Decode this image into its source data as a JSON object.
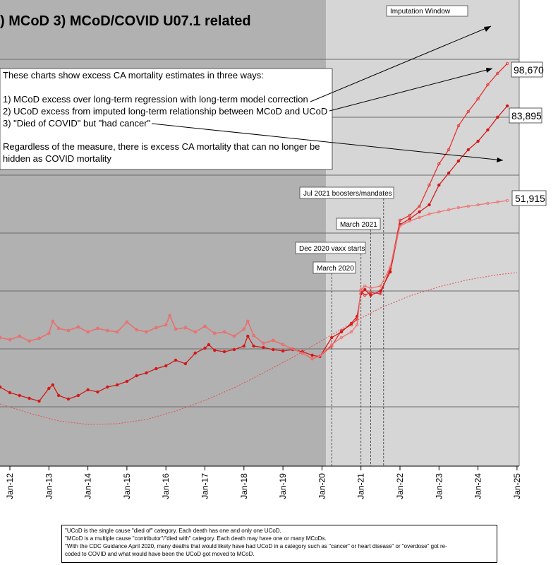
{
  "chart_data": {
    "type": "line",
    "title": ") MCoD 3) MCoD/COVID U07.1 related",
    "x_tick_labels": [
      "Jan-12",
      "Jan-13",
      "Jan-14",
      "Jan-15",
      "Jan-16",
      "Jan-17",
      "Jan-18",
      "Jan-19",
      "Jan-20",
      "Jan-21",
      "Jan-22",
      "Jan-23",
      "Jan-24",
      "Jan-25"
    ],
    "x_range": [
      2011.75,
      2025.0
    ],
    "imputation_window_start": 2020.1,
    "end_labels": [
      "98,670",
      "83,895",
      "51,915"
    ],
    "notes": {
      "intro": "These charts show excess CA mortality estimates in three ways:",
      "item1": "1) MCoD excess over long-term regression with long-term model correction",
      "item2": "2) UCoD excess from imputed long-term relationship between MCoD and UCoD",
      "item3": "3) \"Died of COVID\" but \"had cancer\"",
      "closing1": "Regardless of the measure, there is excess CA mortality that can no longer be",
      "closing2": "hidden as COVID mortality"
    },
    "annotations": {
      "imputation": "Imputation Window",
      "boosters": "Jul 2021 boosters/mandates",
      "march2021": "March 2021",
      "vaxx": "Dec 2020 vaxx starts",
      "march2020": "March 2020"
    },
    "event_lines_x": [
      2020.25,
      2021.0,
      2021.25,
      2021.58
    ],
    "series": [
      {
        "color": "#e83030",
        "values": [
          [
            2011.75,
            478
          ],
          [
            2012.0,
            481
          ],
          [
            2012.25,
            476
          ],
          [
            2012.5,
            483
          ],
          [
            2012.75,
            479
          ],
          [
            2013.0,
            472
          ],
          [
            2013.1,
            455
          ],
          [
            2013.25,
            465
          ],
          [
            2013.5,
            468
          ],
          [
            2013.75,
            463
          ],
          [
            2014.0,
            470
          ],
          [
            2014.25,
            465
          ],
          [
            2014.5,
            468
          ],
          [
            2014.75,
            470
          ],
          [
            2015.0,
            456
          ],
          [
            2015.25,
            467
          ],
          [
            2015.5,
            470
          ],
          [
            2015.75,
            464
          ],
          [
            2016.0,
            460
          ],
          [
            2016.1,
            447
          ],
          [
            2016.25,
            466
          ],
          [
            2016.5,
            464
          ],
          [
            2016.75,
            470
          ],
          [
            2017.0,
            462
          ],
          [
            2017.25,
            472
          ],
          [
            2017.5,
            470
          ],
          [
            2017.75,
            476
          ],
          [
            2018.0,
            466
          ],
          [
            2018.1,
            455
          ],
          [
            2018.25,
            475
          ],
          [
            2018.5,
            486
          ],
          [
            2018.75,
            482
          ],
          [
            2019.0,
            488
          ],
          [
            2019.25,
            494
          ],
          [
            2019.5,
            500
          ],
          [
            2019.75,
            508
          ],
          [
            2019.95,
            504
          ],
          [
            2020.25,
            490
          ],
          [
            2020.5,
            468
          ],
          [
            2020.75,
            460
          ],
          [
            2020.9,
            452
          ],
          [
            2021.0,
            412
          ],
          [
            2021.1,
            418
          ],
          [
            2021.25,
            414
          ],
          [
            2021.5,
            416
          ],
          [
            2021.75,
            380
          ],
          [
            2022.0,
            312
          ],
          [
            2022.25,
            305
          ],
          [
            2022.5,
            292
          ],
          [
            2022.75,
            262
          ],
          [
            2023.0,
            232
          ],
          [
            2023.25,
            212
          ],
          [
            2023.5,
            178
          ],
          [
            2023.75,
            158
          ],
          [
            2024.0,
            140
          ],
          [
            2024.25,
            120
          ],
          [
            2024.5,
            104
          ],
          [
            2024.75,
            90
          ]
        ]
      },
      {
        "color": "#d41818",
        "values": [
          [
            2011.75,
            548
          ],
          [
            2012.0,
            556
          ],
          [
            2012.25,
            560
          ],
          [
            2012.5,
            564
          ],
          [
            2012.75,
            568
          ],
          [
            2013.0,
            550
          ],
          [
            2013.1,
            545
          ],
          [
            2013.25,
            560
          ],
          [
            2013.5,
            565
          ],
          [
            2013.75,
            560
          ],
          [
            2014.0,
            552
          ],
          [
            2014.25,
            555
          ],
          [
            2014.5,
            548
          ],
          [
            2014.75,
            545
          ],
          [
            2015.0,
            540
          ],
          [
            2015.25,
            532
          ],
          [
            2015.5,
            528
          ],
          [
            2015.75,
            522
          ],
          [
            2016.0,
            518
          ],
          [
            2016.25,
            510
          ],
          [
            2016.5,
            515
          ],
          [
            2016.75,
            500
          ],
          [
            2017.0,
            493
          ],
          [
            2017.1,
            488
          ],
          [
            2017.25,
            496
          ],
          [
            2017.5,
            498
          ],
          [
            2017.75,
            495
          ],
          [
            2018.0,
            490
          ],
          [
            2018.1,
            476
          ],
          [
            2018.25,
            490
          ],
          [
            2018.5,
            492
          ],
          [
            2018.75,
            495
          ],
          [
            2019.0,
            497
          ],
          [
            2019.25,
            495
          ],
          [
            2019.5,
            498
          ],
          [
            2019.75,
            503
          ],
          [
            2019.95,
            505
          ],
          [
            2020.25,
            478
          ],
          [
            2020.5,
            470
          ],
          [
            2020.75,
            458
          ],
          [
            2020.9,
            448
          ],
          [
            2021.0,
            416
          ],
          [
            2021.1,
            410
          ],
          [
            2021.25,
            418
          ],
          [
            2021.5,
            412
          ],
          [
            2021.75,
            385
          ],
          [
            2022.0,
            318
          ],
          [
            2022.25,
            310
          ],
          [
            2022.5,
            300
          ],
          [
            2022.75,
            290
          ],
          [
            2023.0,
            262
          ],
          [
            2023.25,
            245
          ],
          [
            2023.5,
            228
          ],
          [
            2023.75,
            212
          ],
          [
            2024.0,
            200
          ],
          [
            2024.25,
            184
          ],
          [
            2024.5,
            166
          ],
          [
            2024.75,
            150
          ]
        ]
      },
      {
        "color": "#f07070",
        "values": [
          [
            2011.75,
            478
          ],
          [
            2012.0,
            481
          ],
          [
            2012.25,
            476
          ],
          [
            2012.5,
            483
          ],
          [
            2012.75,
            479
          ],
          [
            2013.0,
            472
          ],
          [
            2013.1,
            455
          ],
          [
            2013.25,
            465
          ],
          [
            2013.5,
            468
          ],
          [
            2013.75,
            463
          ],
          [
            2014.0,
            470
          ],
          [
            2014.25,
            465
          ],
          [
            2014.5,
            468
          ],
          [
            2014.75,
            470
          ],
          [
            2015.0,
            456
          ],
          [
            2015.25,
            467
          ],
          [
            2015.5,
            470
          ],
          [
            2015.75,
            464
          ],
          [
            2016.0,
            460
          ],
          [
            2016.1,
            447
          ],
          [
            2016.25,
            466
          ],
          [
            2016.5,
            464
          ],
          [
            2016.75,
            470
          ],
          [
            2017.0,
            462
          ],
          [
            2017.25,
            472
          ],
          [
            2017.5,
            470
          ],
          [
            2017.75,
            476
          ],
          [
            2018.0,
            466
          ],
          [
            2018.1,
            455
          ],
          [
            2018.25,
            475
          ],
          [
            2018.5,
            486
          ],
          [
            2018.75,
            482
          ],
          [
            2019.0,
            488
          ],
          [
            2019.25,
            494
          ],
          [
            2019.5,
            500
          ],
          [
            2019.75,
            508
          ],
          [
            2019.95,
            504
          ],
          [
            2020.25,
            488
          ],
          [
            2020.5,
            478
          ],
          [
            2020.75,
            470
          ],
          [
            2020.9,
            460
          ],
          [
            2021.0,
            410
          ],
          [
            2021.1,
            405
          ],
          [
            2021.25,
            408
          ],
          [
            2021.5,
            405
          ],
          [
            2021.75,
            378
          ],
          [
            2022.0,
            320
          ],
          [
            2022.25,
            313
          ],
          [
            2022.5,
            308
          ],
          [
            2022.75,
            303
          ],
          [
            2023.0,
            300
          ],
          [
            2023.25,
            297
          ],
          [
            2023.5,
            294
          ],
          [
            2023.75,
            292
          ],
          [
            2024.0,
            290
          ],
          [
            2024.25,
            288
          ],
          [
            2024.5,
            286
          ],
          [
            2024.75,
            284
          ]
        ]
      },
      {
        "color": "#e85050",
        "dashed": true,
        "values": [
          [
            2011.75,
            572
          ],
          [
            2012.5,
            585
          ],
          [
            2013.25,
            596
          ],
          [
            2014.0,
            601
          ],
          [
            2014.75,
            600
          ],
          [
            2015.5,
            594
          ],
          [
            2016.25,
            582
          ],
          [
            2017.0,
            567
          ],
          [
            2017.75,
            549
          ],
          [
            2018.5,
            528
          ],
          [
            2019.25,
            506
          ],
          [
            2020.0,
            482
          ],
          [
            2020.75,
            458
          ],
          [
            2021.5,
            436
          ],
          [
            2022.25,
            419
          ],
          [
            2023.0,
            406
          ],
          [
            2023.75,
            396
          ],
          [
            2024.5,
            389
          ],
          [
            2025.0,
            386
          ]
        ]
      }
    ],
    "footnote": [
      "\"UCoD is the single cause \"died of\" category. Each death has one and only one UCoD.",
      "\"MCoD is a multiple cause \"contributor\"/\"died with\" category. Each death may have one or many MCoDs.",
      "\"With the CDC Guidance April 2020, many deaths that would likely have had UCoD in a category such as \"cancer\" or heart disease\" or \"overdose\" got re-",
      "coded to COVID and what would have been the UCoD got moved to MCoD."
    ]
  }
}
